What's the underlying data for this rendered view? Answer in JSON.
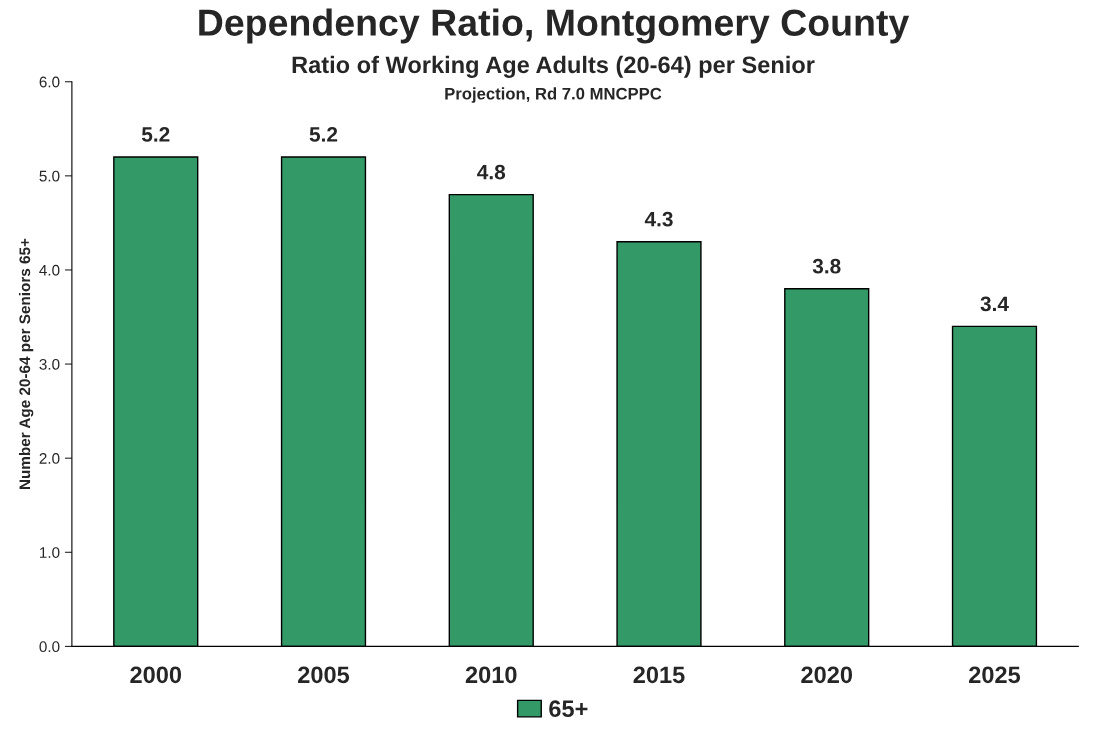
{
  "chart_data": {
    "type": "bar",
    "title": "Dependency Ratio, Montgomery County",
    "subtitle": "Ratio of Working Age Adults (20-64) per Senior",
    "annotations": [
      "Projection, Rd 7.0 MNCPPC"
    ],
    "ylabel": "Number Age 20-64 per Seniors 65+",
    "categories": [
      "2000",
      "2005",
      "2010",
      "2015",
      "2020",
      "2025"
    ],
    "series": [
      {
        "name": "65+",
        "color": "#339966",
        "values": [
          5.2,
          5.2,
          4.8,
          4.3,
          3.8,
          3.4
        ]
      }
    ],
    "ylim": [
      0,
      6
    ],
    "yticks": [
      {
        "value": 0,
        "label": "0.0"
      },
      {
        "value": 1,
        "label": "1.0"
      },
      {
        "value": 2,
        "label": "2.0"
      },
      {
        "value": 3,
        "label": "3.0"
      },
      {
        "value": 4,
        "label": "4.0"
      },
      {
        "value": 5,
        "label": "5.0"
      },
      {
        "value": 6,
        "label": "6.0"
      }
    ],
    "data_labels": true,
    "grid": false,
    "legend": "bottom"
  }
}
